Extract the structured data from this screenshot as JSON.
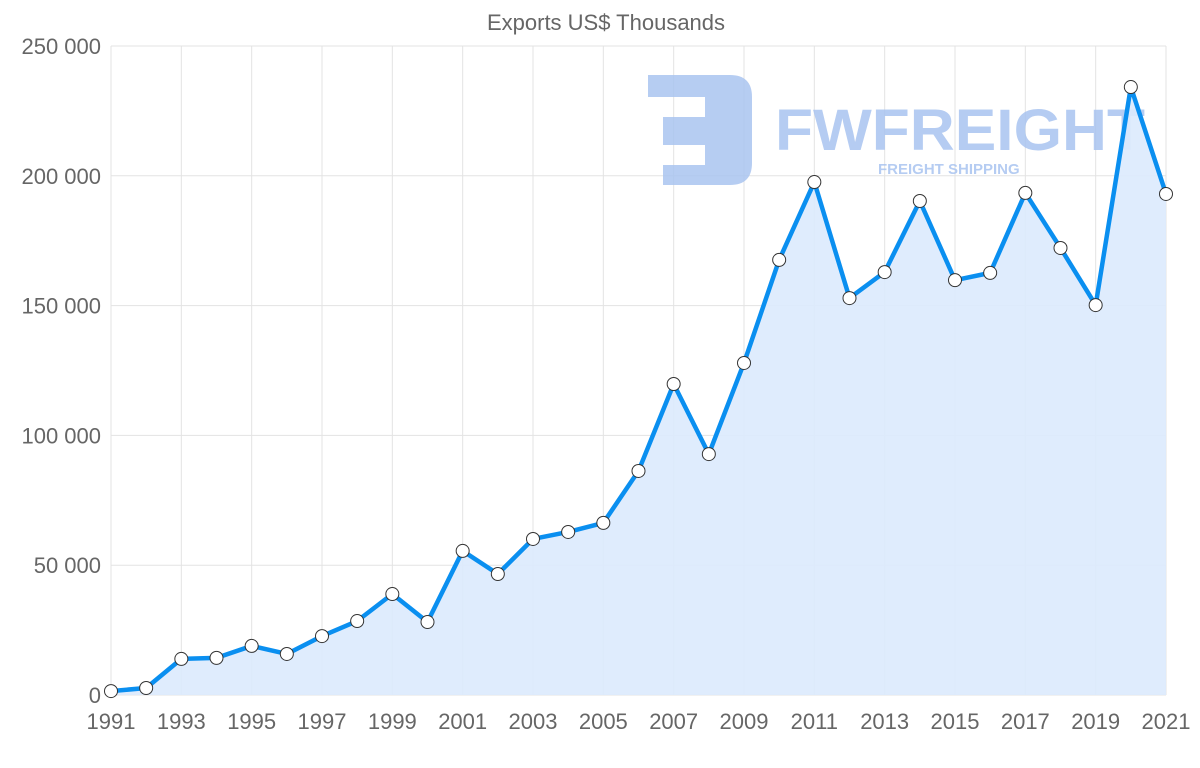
{
  "chart_data": {
    "type": "area",
    "title": "Exports US$ Thousands",
    "xlabel": "",
    "ylabel": "",
    "ylim": [
      0,
      250000
    ],
    "yticks": [
      0,
      50000,
      100000,
      150000,
      200000,
      250000
    ],
    "ytick_labels": [
      "0",
      "50 000",
      "100 000",
      "150 000",
      "200 000",
      "250 000"
    ],
    "x": [
      1991,
      1992,
      1993,
      1994,
      1995,
      1996,
      1997,
      1998,
      1999,
      2000,
      2001,
      2002,
      2003,
      2004,
      2005,
      2006,
      2007,
      2008,
      2009,
      2010,
      2011,
      2012,
      2013,
      2014,
      2015,
      2016,
      2017,
      2018,
      2019,
      2020,
      2021
    ],
    "xtick_labels": [
      "1991",
      "1993",
      "1995",
      "1997",
      "1999",
      "2001",
      "2003",
      "2005",
      "2007",
      "2009",
      "2011",
      "2013",
      "2015",
      "2017",
      "2019",
      "2021"
    ],
    "series": [
      {
        "name": "Exports US$ Thousands",
        "values": [
          1500,
          2700,
          13900,
          14300,
          18900,
          15800,
          22700,
          28500,
          38900,
          28100,
          55500,
          46600,
          60100,
          62800,
          66300,
          86300,
          119800,
          92800,
          127900,
          167600,
          197600,
          152900,
          162900,
          190300,
          159800,
          162600,
          193400,
          172200,
          150200,
          234200,
          193000
        ]
      }
    ],
    "grid": true,
    "colors": {
      "line": "#0a8ff0",
      "fill": "#dbeafd",
      "grid": "#e3e3e3",
      "text": "#666666"
    }
  },
  "watermark": {
    "brand": "FWFREIGHT",
    "tagline": "FREIGHT SHIPPING",
    "color": "#a9c4f0"
  }
}
